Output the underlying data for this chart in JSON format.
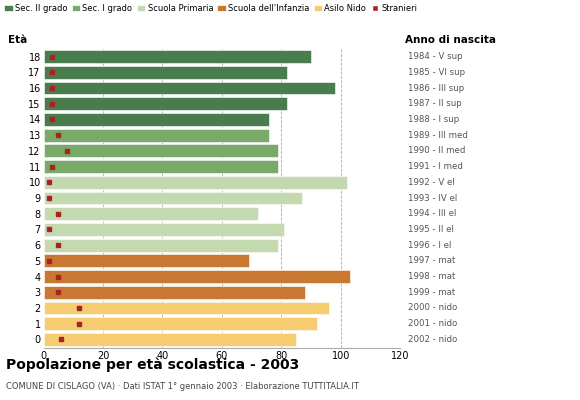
{
  "ages": [
    18,
    17,
    16,
    15,
    14,
    13,
    12,
    11,
    10,
    9,
    8,
    7,
    6,
    5,
    4,
    3,
    2,
    1,
    0
  ],
  "bar_values": [
    90,
    82,
    98,
    82,
    76,
    76,
    79,
    79,
    102,
    87,
    72,
    81,
    79,
    69,
    103,
    88,
    96,
    92,
    85
  ],
  "stranieri_values": [
    3,
    3,
    3,
    3,
    3,
    5,
    8,
    3,
    2,
    2,
    5,
    2,
    5,
    2,
    5,
    5,
    12,
    12,
    6
  ],
  "right_labels": [
    "1984 - V sup",
    "1985 - VI sup",
    "1986 - III sup",
    "1987 - II sup",
    "1988 - I sup",
    "1989 - III med",
    "1990 - II med",
    "1991 - I med",
    "1992 - V el",
    "1993 - IV el",
    "1994 - III el",
    "1995 - II el",
    "1996 - I el",
    "1997 - mat",
    "1998 - mat",
    "1999 - mat",
    "2000 - nido",
    "2001 - nido",
    "2002 - nido"
  ],
  "bar_colors": [
    "#4a7c4e",
    "#4a7c4e",
    "#4a7c4e",
    "#4a7c4e",
    "#4a7c4e",
    "#7aaa6a",
    "#7aaa6a",
    "#7aaa6a",
    "#c5d9b0",
    "#c5d9b0",
    "#c5d9b0",
    "#c5d9b0",
    "#c5d9b0",
    "#c87830",
    "#c87830",
    "#c87830",
    "#f5cc70",
    "#f5cc70",
    "#f5cc70"
  ],
  "legend_labels": [
    "Sec. II grado",
    "Sec. I grado",
    "Scuola Primaria",
    "Scuola dell'Infanzia",
    "Asilo Nido",
    "Stranieri"
  ],
  "legend_colors": [
    "#4a7c4e",
    "#7aaa6a",
    "#c5d9b0",
    "#c87830",
    "#f5cc70",
    "#aa2222"
  ],
  "stranieri_color": "#aa2222",
  "title": "Popolazione per età scolastica - 2003",
  "subtitle": "COMUNE DI CISLAGO (VA) · Dati ISTAT 1° gennaio 2003 · Elaborazione TUTTITALIA.IT",
  "xlabel_left": "Età",
  "xlabel_right": "Anno di nascita",
  "xlim": [
    0,
    120
  ],
  "xticks": [
    0,
    20,
    40,
    60,
    80,
    100,
    120
  ],
  "grid_lines": [
    20,
    40,
    60,
    80,
    100,
    120
  ]
}
